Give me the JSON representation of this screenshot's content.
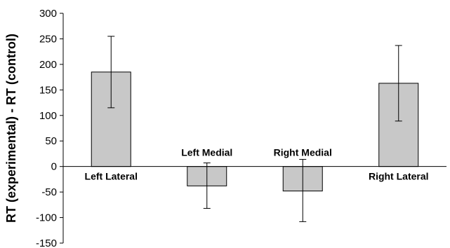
{
  "chart_data": {
    "type": "bar",
    "title": "",
    "xlabel": "",
    "ylabel": "RT (experimental) - RT (control)",
    "ylim": [
      -150,
      300
    ],
    "yticks": [
      300,
      250,
      200,
      150,
      100,
      50,
      0,
      -50,
      -100,
      -150
    ],
    "grid": false,
    "categories": [
      "Left Lateral",
      "Left Medial",
      "Right Medial",
      "Right Lateral"
    ],
    "values": [
      185,
      -38,
      -48,
      163
    ],
    "error_low": [
      115,
      -82,
      -108,
      89
    ],
    "error_high": [
      255,
      7,
      14,
      237
    ],
    "bar_color": "#c8c8c8",
    "bar_edge_color": "#000000"
  }
}
